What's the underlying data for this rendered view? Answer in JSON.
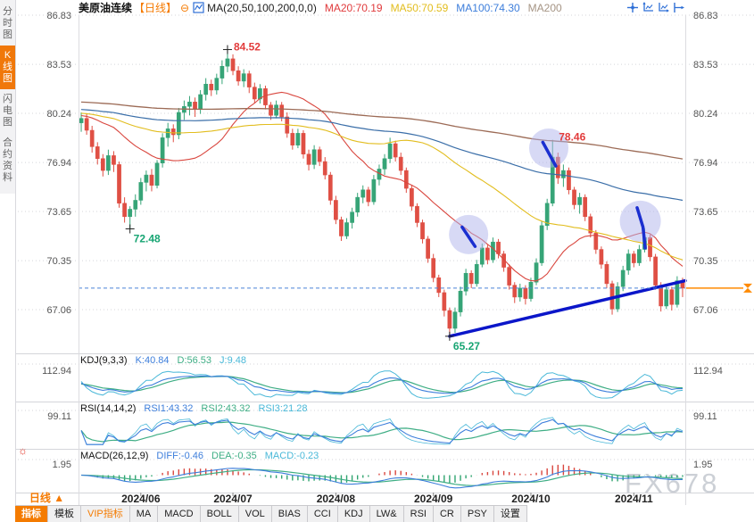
{
  "header": {
    "title": "美原油连续",
    "period_tag": "【日线】",
    "ma_formula": "MA(20,50,100,200,0,0)",
    "ma_items": [
      {
        "label": "MA20:70.19",
        "color": "#e03a3c"
      },
      {
        "label": "MA50:70.59",
        "color": "#e2bd1e"
      },
      {
        "label": "MA100:74.30",
        "color": "#3d7edb"
      },
      {
        "label": "MA200",
        "color": "#a59484"
      }
    ]
  },
  "icons": {
    "minus": "⊖",
    "sun": "☼"
  },
  "sidebar": {
    "items": [
      {
        "label": "分时图",
        "active": false
      },
      {
        "label": "K线图",
        "active": true
      },
      {
        "label": "闪电图",
        "active": false
      },
      {
        "label": "合约资料",
        "active": false
      }
    ]
  },
  "toolbar": {
    "period_label": "日线",
    "period_arrow": "▲",
    "items": [
      {
        "label": "指标",
        "style": "active"
      },
      {
        "label": "模板",
        "style": "normal"
      },
      {
        "label": "VIP指标",
        "style": "vip"
      },
      {
        "label": "MA",
        "style": "normal"
      },
      {
        "label": "MACD",
        "style": "normal"
      },
      {
        "label": "BOLL",
        "style": "normal"
      },
      {
        "label": "VOL",
        "style": "normal"
      },
      {
        "label": "BIAS",
        "style": "normal"
      },
      {
        "label": "CCI",
        "style": "normal"
      },
      {
        "label": "KDJ",
        "style": "normal"
      },
      {
        "label": "LW&",
        "style": "normal"
      },
      {
        "label": "RSI",
        "style": "normal"
      },
      {
        "label": "CR",
        "style": "normal"
      },
      {
        "label": "PSY",
        "style": "normal"
      },
      {
        "label": "设置",
        "style": "normal"
      }
    ]
  },
  "panels": {
    "kdj": {
      "formula": "KDJ(9,3,3)",
      "scale_label": "112.94",
      "values": [
        {
          "label": "K:40.84",
          "color": "#3d7edb"
        },
        {
          "label": "D:56.53",
          "color": "#3fae85"
        },
        {
          "label": "J:9.48",
          "color": "#49b8d8"
        }
      ]
    },
    "rsi": {
      "formula": "RSI(14,14,2)",
      "scale_label": "99.11",
      "values": [
        {
          "label": "RSI1:43.32",
          "color": "#3d7edb"
        },
        {
          "label": "RSI2:43.32",
          "color": "#3fae85"
        },
        {
          "label": "RSI3:21.28",
          "color": "#49b8d8"
        }
      ]
    },
    "macd": {
      "formula": "MACD(26,12,9)",
      "scale_label": "1.95",
      "values": [
        {
          "label": "DIFF:-0.46",
          "color": "#3d7edb"
        },
        {
          "label": "DEA:-0.35",
          "color": "#3fae85"
        },
        {
          "label": "MACD:-0.23",
          "color": "#49b8d8"
        }
      ]
    }
  },
  "watermark": "FX678",
  "chart_data": {
    "type": "candlestick",
    "symbol": "美原油连续",
    "interval": "日线",
    "y_axis_labels": [
      86.83,
      83.53,
      80.24,
      76.94,
      73.65,
      70.35,
      67.06
    ],
    "panel_scale_labels": [
      112.94,
      99.11,
      1.95
    ],
    "x_ticks": [
      {
        "label": "2024/06",
        "i": 11
      },
      {
        "label": "2024/07",
        "i": 28
      },
      {
        "label": "2024/08",
        "i": 47
      },
      {
        "label": "2024/09",
        "i": 65
      },
      {
        "label": "2024/10",
        "i": 83
      },
      {
        "label": "2024/11",
        "i": 102
      }
    ],
    "current_price": 68.5,
    "ma_latest": {
      "MA20": 70.19,
      "MA50": 70.59,
      "MA100": 74.3
    },
    "annotations": [
      {
        "text": "84.52",
        "i": 27,
        "v": 84.52,
        "type": "high",
        "cross": true
      },
      {
        "text": "72.48",
        "i": 9,
        "v": 72.48,
        "type": "low",
        "cross": true
      },
      {
        "text": "65.27",
        "i": 68,
        "v": 65.27,
        "type": "low",
        "cross": true
      },
      {
        "text": "78.46",
        "i": 87,
        "v": 78.46,
        "type": "high",
        "cross": false
      }
    ],
    "highlight_circles": [
      {
        "i": 86.3,
        "v": 77.9,
        "r": 22
      },
      {
        "i": 71.5,
        "v": 72.1,
        "r": 22
      },
      {
        "i": 103.2,
        "v": 73.0,
        "r": 23
      }
    ],
    "arrows": [
      [
        [
          85.2,
          78.3
        ],
        [
          87.6,
          76.7
        ]
      ],
      [
        [
          70.3,
          72.6
        ],
        [
          72.7,
          71.3
        ]
      ],
      [
        [
          102.6,
          73.9
        ],
        [
          103.7,
          72.6
        ],
        [
          104.1,
          71.2
        ]
      ]
    ],
    "trendline": {
      "from": {
        "i": 68,
        "v": 65.27
      },
      "to": {
        "i": 111.5,
        "v": 69.0
      }
    },
    "colors": {
      "up": "#36a477",
      "down": "#df4f44",
      "ma20": "#d9463e",
      "ma50": "#e2bd1e",
      "ma100": "#3a6ea8",
      "ma200": "#9c6b56",
      "trendline": "#0b16c9",
      "current_dash": "#4a84d8",
      "price_marker": "#ff8a00",
      "circle": "rgba(176,180,235,0.5)",
      "arrow": "#1b2fd0",
      "kdj": [
        "#3d7edb",
        "#3fae85",
        "#49b8d8"
      ],
      "rsi": [
        "#3d7edb",
        "#3fae85",
        "#49b8d8"
      ],
      "macd_diff": "#3d7edb",
      "macd_dea": "#3fae85",
      "hist_up": "#d9463e",
      "hist_down": "#2fa46f",
      "annotation_high": "#e23b3b",
      "annotation_low": "#18a573"
    },
    "candles": [
      [
        79.6,
        80.3,
        79.0,
        79.9
      ],
      [
        79.9,
        80.2,
        78.8,
        79.1
      ],
      [
        79.1,
        79.4,
        77.6,
        78.0
      ],
      [
        78.0,
        78.3,
        76.8,
        77.2
      ],
      [
        77.2,
        77.5,
        76.0,
        76.4
      ],
      [
        76.4,
        77.8,
        76.1,
        77.4
      ],
      [
        77.4,
        77.7,
        76.3,
        76.8
      ],
      [
        76.8,
        77.0,
        73.9,
        74.2
      ],
      [
        74.2,
        74.6,
        72.9,
        73.3
      ],
      [
        73.3,
        74.0,
        72.48,
        73.8
      ],
      [
        73.8,
        74.8,
        73.3,
        74.4
      ],
      [
        74.4,
        75.9,
        74.1,
        75.6
      ],
      [
        75.6,
        76.4,
        75.0,
        76.1
      ],
      [
        76.1,
        76.5,
        75.0,
        75.4
      ],
      [
        75.4,
        77.1,
        75.2,
        76.9
      ],
      [
        76.9,
        78.9,
        76.6,
        78.6
      ],
      [
        78.6,
        79.6,
        78.0,
        79.2
      ],
      [
        79.2,
        79.5,
        78.3,
        78.8
      ],
      [
        78.8,
        80.6,
        78.5,
        80.3
      ],
      [
        80.3,
        81.1,
        79.8,
        80.7
      ],
      [
        80.7,
        81.4,
        80.1,
        81.0
      ],
      [
        81.0,
        81.3,
        80.0,
        80.5
      ],
      [
        80.5,
        81.8,
        80.2,
        81.5
      ],
      [
        81.5,
        82.6,
        81.1,
        82.2
      ],
      [
        82.2,
        82.5,
        81.4,
        81.8
      ],
      [
        81.8,
        82.9,
        81.5,
        82.6
      ],
      [
        82.6,
        83.8,
        82.2,
        83.4
      ],
      [
        83.4,
        84.52,
        83.0,
        83.9
      ],
      [
        83.9,
        84.2,
        82.8,
        83.1
      ],
      [
        83.1,
        83.4,
        82.1,
        82.4
      ],
      [
        82.4,
        83.2,
        82.0,
        82.9
      ],
      [
        82.9,
        83.1,
        81.6,
        82.0
      ],
      [
        82.0,
        82.3,
        80.9,
        81.2
      ],
      [
        81.2,
        82.2,
        80.9,
        81.9
      ],
      [
        81.9,
        82.1,
        80.5,
        80.8
      ],
      [
        80.8,
        81.0,
        79.8,
        80.1
      ],
      [
        80.1,
        81.1,
        79.9,
        80.8
      ],
      [
        80.8,
        81.0,
        79.7,
        80.0
      ],
      [
        80.0,
        80.3,
        78.6,
        78.9
      ],
      [
        78.9,
        79.2,
        77.8,
        78.1
      ],
      [
        78.1,
        79.2,
        77.9,
        78.9
      ],
      [
        78.9,
        79.1,
        77.2,
        77.5
      ],
      [
        77.5,
        77.8,
        76.4,
        76.8
      ],
      [
        76.8,
        78.1,
        76.5,
        77.8
      ],
      [
        77.8,
        78.0,
        76.7,
        77.0
      ],
      [
        77.0,
        77.3,
        75.8,
        76.1
      ],
      [
        76.1,
        76.3,
        74.1,
        74.4
      ],
      [
        74.4,
        74.7,
        72.8,
        73.1
      ],
      [
        73.1,
        73.3,
        71.67,
        72.0
      ],
      [
        72.0,
        73.2,
        71.8,
        72.9
      ],
      [
        72.9,
        73.9,
        72.5,
        73.6
      ],
      [
        73.6,
        74.9,
        73.3,
        74.6
      ],
      [
        74.6,
        75.4,
        74.2,
        75.1
      ],
      [
        75.1,
        75.3,
        74.0,
        74.3
      ],
      [
        74.3,
        76.1,
        74.1,
        75.8
      ],
      [
        75.8,
        76.8,
        75.4,
        76.5
      ],
      [
        76.5,
        77.5,
        76.1,
        77.2
      ],
      [
        77.2,
        78.6,
        76.9,
        78.2
      ],
      [
        78.2,
        78.4,
        77.0,
        77.3
      ],
      [
        77.3,
        77.6,
        76.1,
        76.4
      ],
      [
        76.4,
        76.6,
        74.9,
        75.2
      ],
      [
        75.2,
        75.4,
        73.7,
        74.0
      ],
      [
        74.0,
        74.2,
        72.6,
        72.9
      ],
      [
        72.9,
        73.1,
        71.5,
        71.8
      ],
      [
        71.8,
        72.0,
        70.2,
        70.5
      ],
      [
        70.5,
        70.8,
        68.9,
        69.2
      ],
      [
        69.2,
        69.4,
        67.9,
        68.2
      ],
      [
        68.2,
        68.4,
        66.6,
        67.0
      ],
      [
        67.0,
        67.2,
        65.27,
        65.8
      ],
      [
        65.8,
        67.2,
        65.5,
        66.9
      ],
      [
        66.9,
        68.6,
        66.6,
        68.3
      ],
      [
        68.3,
        69.8,
        68.0,
        69.5
      ],
      [
        69.5,
        69.7,
        68.5,
        68.8
      ],
      [
        68.8,
        70.4,
        68.6,
        70.1
      ],
      [
        70.1,
        71.5,
        69.9,
        71.2
      ],
      [
        71.2,
        71.4,
        70.1,
        70.4
      ],
      [
        70.4,
        71.9,
        70.2,
        71.6
      ],
      [
        71.6,
        71.8,
        70.5,
        70.8
      ],
      [
        70.8,
        71.0,
        69.6,
        69.9
      ],
      [
        69.9,
        70.1,
        68.4,
        68.7
      ],
      [
        68.7,
        68.9,
        67.5,
        67.9
      ],
      [
        67.9,
        68.8,
        67.6,
        68.5
      ],
      [
        68.5,
        68.7,
        67.4,
        67.8
      ],
      [
        67.8,
        69.2,
        67.6,
        68.9
      ],
      [
        68.9,
        70.5,
        68.7,
        70.2
      ],
      [
        70.2,
        73.0,
        70.0,
        72.7
      ],
      [
        72.7,
        74.5,
        72.4,
        74.2
      ],
      [
        74.2,
        78.46,
        74.0,
        77.3
      ],
      [
        77.3,
        77.6,
        75.5,
        75.9
      ],
      [
        75.9,
        76.8,
        75.3,
        76.4
      ],
      [
        76.4,
        76.6,
        74.8,
        75.1
      ],
      [
        75.1,
        75.3,
        73.8,
        74.1
      ],
      [
        74.1,
        74.9,
        73.5,
        74.6
      ],
      [
        74.6,
        74.8,
        73.0,
        73.3
      ],
      [
        73.3,
        73.5,
        71.9,
        72.2
      ],
      [
        72.2,
        72.4,
        70.8,
        71.1
      ],
      [
        71.1,
        71.3,
        69.8,
        70.1
      ],
      [
        70.1,
        70.3,
        68.5,
        68.8
      ],
      [
        68.8,
        69.0,
        66.72,
        67.1
      ],
      [
        67.1,
        68.9,
        66.9,
        68.6
      ],
      [
        68.6,
        70.0,
        68.3,
        69.7
      ],
      [
        69.7,
        71.1,
        69.4,
        70.8
      ],
      [
        70.8,
        71.0,
        69.9,
        70.2
      ],
      [
        70.2,
        71.4,
        70.0,
        71.1
      ],
      [
        71.1,
        72.52,
        70.9,
        71.9
      ],
      [
        71.9,
        72.1,
        70.3,
        70.6
      ],
      [
        70.6,
        70.8,
        68.4,
        68.7
      ],
      [
        68.7,
        68.9,
        66.93,
        67.3
      ],
      [
        67.3,
        68.7,
        67.1,
        68.4
      ],
      [
        68.4,
        68.6,
        67.0,
        67.4
      ],
      [
        67.4,
        69.3,
        67.2,
        69.0
      ],
      [
        69.0,
        69.2,
        67.9,
        68.5
      ]
    ]
  }
}
